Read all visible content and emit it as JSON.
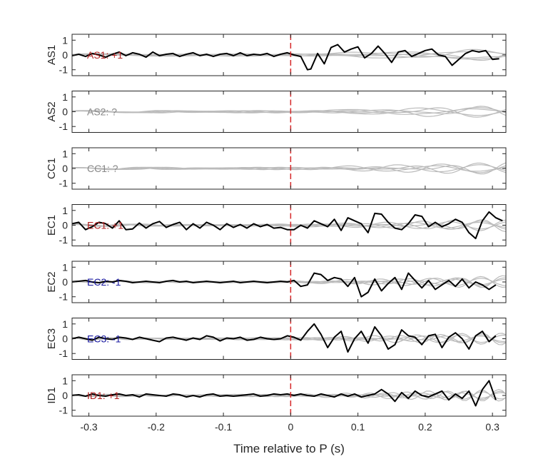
{
  "chart_data": {
    "type": "line",
    "xlabel": "Time relative to P (s)",
    "xlim": [
      -0.325,
      0.32
    ],
    "x_ticks": [
      -0.3,
      -0.2,
      -0.1,
      0,
      0.1,
      0.2,
      0.3
    ],
    "x_tick_labels": [
      "-0.3",
      "-0.2",
      "-0.1",
      "0",
      "0.1",
      "0.2",
      "0.3"
    ],
    "ylim": [
      -1.4,
      1.4
    ],
    "y_ticks": [
      1,
      0,
      -1
    ],
    "y_tick_labels": [
      "1",
      "0",
      "-1"
    ],
    "p_arrival_marker": {
      "x": 0,
      "color": "#d62728",
      "style": "dashed"
    },
    "colors": {
      "main_trace": "#000000",
      "background_traces": "#bbbbbb",
      "positive_polarity": "#b22222",
      "negative_polarity": "#1a1aa0",
      "unknown_polarity": "#888888"
    },
    "panels": [
      {
        "ylabel": "AS1",
        "annotation": "AS1: +1",
        "polarity": "positive",
        "main_trace": {
          "x": [
            -0.325,
            -0.315,
            -0.305,
            -0.295,
            -0.285,
            -0.275,
            -0.265,
            -0.255,
            -0.245,
            -0.235,
            -0.225,
            -0.215,
            -0.205,
            -0.195,
            -0.185,
            -0.175,
            -0.165,
            -0.155,
            -0.145,
            -0.135,
            -0.125,
            -0.115,
            -0.105,
            -0.095,
            -0.085,
            -0.075,
            -0.065,
            -0.055,
            -0.045,
            -0.035,
            -0.025,
            -0.015,
            -0.005,
            0.005,
            0.015,
            0.025,
            0.03,
            0.04,
            0.05,
            0.06,
            0.07,
            0.08,
            0.09,
            0.1,
            0.11,
            0.12,
            0.13,
            0.14,
            0.15,
            0.16,
            0.17,
            0.18,
            0.19,
            0.2,
            0.21,
            0.22,
            0.23,
            0.24,
            0.25,
            0.26,
            0.27,
            0.28,
            0.29,
            0.3,
            0.31
          ],
          "y": [
            -0.05,
            0.05,
            -0.1,
            0.1,
            0.0,
            -0.15,
            0.05,
            0.2,
            -0.05,
            0.15,
            0.05,
            -0.15,
            0.2,
            -0.05,
            0.05,
            0.1,
            -0.1,
            0.05,
            0.15,
            -0.05,
            0.05,
            -0.1,
            0.05,
            0.1,
            -0.05,
            0.15,
            -0.05,
            0.05,
            0.0,
            0.1,
            -0.1,
            0.05,
            0.15,
            0.0,
            -0.1,
            -1.0,
            -0.95,
            0.1,
            -0.6,
            0.5,
            0.7,
            0.2,
            0.4,
            0.55,
            -0.2,
            0.1,
            0.6,
            0.1,
            -0.5,
            0.2,
            0.3,
            -0.1,
            0.1,
            0.3,
            0.4,
            0.0,
            -0.1,
            -0.7,
            -0.3,
            0.1,
            0.3,
            0.2,
            0.3,
            -0.3,
            -0.25
          ]
        },
        "background_traces": 5
      },
      {
        "ylabel": "AS2",
        "annotation": "AS2: ?",
        "polarity": "unknown",
        "main_trace": null,
        "background_traces": 5
      },
      {
        "ylabel": "CC1",
        "annotation": "CC1: ?",
        "polarity": "unknown",
        "main_trace": null,
        "background_traces": 5
      },
      {
        "ylabel": "EC1",
        "annotation": "EC1: +1",
        "polarity": "positive",
        "main_trace": {
          "x": [
            -0.325,
            -0.315,
            -0.305,
            -0.295,
            -0.285,
            -0.275,
            -0.265,
            -0.255,
            -0.245,
            -0.235,
            -0.225,
            -0.215,
            -0.205,
            -0.195,
            -0.185,
            -0.175,
            -0.165,
            -0.155,
            -0.145,
            -0.135,
            -0.125,
            -0.115,
            -0.105,
            -0.095,
            -0.085,
            -0.075,
            -0.065,
            -0.055,
            -0.045,
            -0.035,
            -0.025,
            -0.015,
            -0.005,
            0.005,
            0.015,
            0.025,
            0.035,
            0.045,
            0.055,
            0.065,
            0.075,
            0.085,
            0.095,
            0.105,
            0.115,
            0.125,
            0.135,
            0.145,
            0.155,
            0.165,
            0.175,
            0.185,
            0.195,
            0.205,
            0.215,
            0.225,
            0.235,
            0.245,
            0.255,
            0.265,
            0.275,
            0.285,
            0.295,
            0.305,
            0.315
          ],
          "y": [
            0.1,
            0.2,
            -0.3,
            -0.1,
            0.2,
            0.1,
            -0.2,
            0.3,
            -0.3,
            -0.25,
            0.15,
            -0.2,
            0.1,
            0.25,
            -0.15,
            0.05,
            0.2,
            -0.3,
            0.1,
            -0.2,
            0.2,
            0.0,
            -0.3,
            0.1,
            -0.15,
            0.05,
            -0.2,
            0.1,
            -0.1,
            0.05,
            -0.2,
            -0.15,
            -0.3,
            -0.3,
            0.0,
            -0.2,
            0.3,
            0.1,
            -0.1,
            0.4,
            -0.35,
            0.5,
            0.3,
            0.1,
            -0.5,
            0.8,
            0.75,
            0.2,
            -0.2,
            -0.3,
            0.1,
            0.7,
            0.6,
            -0.1,
            0.2,
            -0.1,
            0.1,
            0.4,
            0.2,
            -0.5,
            -0.9,
            0.3,
            0.9,
            0.5,
            0.3
          ]
        },
        "background_traces": 5
      },
      {
        "ylabel": "EC2",
        "annotation": "EC2: -1",
        "polarity": "negative",
        "main_trace": {
          "x": [
            -0.325,
            -0.315,
            -0.305,
            -0.295,
            -0.285,
            -0.275,
            -0.265,
            -0.255,
            -0.245,
            -0.235,
            -0.225,
            -0.215,
            -0.205,
            -0.195,
            -0.185,
            -0.175,
            -0.165,
            -0.155,
            -0.145,
            -0.135,
            -0.125,
            -0.115,
            -0.105,
            -0.095,
            -0.085,
            -0.075,
            -0.065,
            -0.055,
            -0.045,
            -0.035,
            -0.025,
            -0.015,
            -0.005,
            0.005,
            0.015,
            0.025,
            0.035,
            0.045,
            0.055,
            0.065,
            0.075,
            0.085,
            0.095,
            0.105,
            0.115,
            0.125,
            0.135,
            0.145,
            0.155,
            0.165,
            0.175,
            0.185,
            0.195,
            0.205,
            0.215,
            0.225,
            0.235,
            0.245,
            0.255,
            0.265,
            0.275,
            0.285,
            0.295,
            0.305
          ],
          "y": [
            0.0,
            0.05,
            0.1,
            0.0,
            -0.05,
            0.05,
            0.0,
            0.1,
            0.05,
            -0.05,
            0.0,
            0.05,
            0.0,
            -0.05,
            0.05,
            0.1,
            0.0,
            0.05,
            -0.05,
            0.0,
            0.05,
            0.0,
            -0.05,
            0.0,
            0.05,
            -0.05,
            0.0,
            0.05,
            0.0,
            -0.05,
            0.0,
            0.05,
            0.0,
            0.1,
            -0.3,
            -0.2,
            0.6,
            0.5,
            0.1,
            0.3,
            0.2,
            -0.3,
            0.3,
            -1.0,
            -0.7,
            0.2,
            -0.6,
            -0.1,
            0.3,
            -0.5,
            0.6,
            0.1,
            -0.4,
            0.1,
            -0.5,
            -0.2,
            0.1,
            -0.3,
            0.2,
            -0.4,
            0.0,
            -0.2,
            -0.5,
            -0.2
          ]
        },
        "background_traces": 5
      },
      {
        "ylabel": "EC3",
        "annotation": "EC3: -1",
        "polarity": "negative",
        "main_trace": {
          "x": [
            -0.325,
            -0.315,
            -0.305,
            -0.295,
            -0.285,
            -0.275,
            -0.265,
            -0.255,
            -0.245,
            -0.235,
            -0.225,
            -0.215,
            -0.205,
            -0.195,
            -0.185,
            -0.175,
            -0.165,
            -0.155,
            -0.145,
            -0.135,
            -0.125,
            -0.115,
            -0.105,
            -0.095,
            -0.085,
            -0.075,
            -0.065,
            -0.055,
            -0.045,
            -0.035,
            -0.025,
            -0.015,
            -0.005,
            0.005,
            0.015,
            0.025,
            0.035,
            0.045,
            0.055,
            0.065,
            0.075,
            0.085,
            0.095,
            0.105,
            0.115,
            0.125,
            0.135,
            0.145,
            0.155,
            0.165,
            0.175,
            0.185,
            0.195,
            0.205,
            0.215,
            0.225,
            0.235,
            0.245,
            0.255,
            0.265,
            0.275,
            0.285,
            0.295,
            0.305
          ],
          "y": [
            0.0,
            0.1,
            0.0,
            -0.1,
            0.1,
            0.0,
            -0.05,
            0.1,
            0.05,
            -0.05,
            0.1,
            0.0,
            -0.1,
            -0.2,
            0.05,
            0.1,
            0.0,
            -0.1,
            0.05,
            -0.05,
            0.2,
            0.1,
            -0.15,
            0.05,
            0.0,
            0.1,
            -0.1,
            -0.05,
            0.1,
            0.0,
            -0.05,
            0.0,
            0.2,
            0.1,
            -0.1,
            0.5,
            1.0,
            0.3,
            -0.6,
            0.1,
            0.5,
            -0.9,
            0.0,
            0.5,
            -0.3,
            0.8,
            0.2,
            -0.7,
            -0.4,
            0.6,
            0.2,
            0.1,
            -0.4,
            0.2,
            0.3,
            -0.6,
            0.1,
            0.4,
            0.0,
            -0.7,
            0.2,
            0.5,
            -0.2,
            0.2
          ]
        },
        "background_traces": 5
      },
      {
        "ylabel": "ID1",
        "annotation": "ID1: +1",
        "polarity": "positive",
        "main_trace": {
          "x": [
            -0.325,
            -0.315,
            -0.305,
            -0.295,
            -0.285,
            -0.275,
            -0.265,
            -0.255,
            -0.245,
            -0.235,
            -0.225,
            -0.215,
            -0.205,
            -0.195,
            -0.185,
            -0.175,
            -0.165,
            -0.155,
            -0.145,
            -0.135,
            -0.125,
            -0.115,
            -0.105,
            -0.095,
            -0.085,
            -0.075,
            -0.065,
            -0.055,
            -0.045,
            -0.035,
            -0.025,
            -0.015,
            -0.005,
            0.005,
            0.015,
            0.025,
            0.035,
            0.045,
            0.055,
            0.065,
            0.075,
            0.085,
            0.095,
            0.105,
            0.115,
            0.125,
            0.135,
            0.145,
            0.155,
            0.165,
            0.175,
            0.185,
            0.195,
            0.205,
            0.215,
            0.225,
            0.235,
            0.245,
            0.255,
            0.265,
            0.275,
            0.285,
            0.295,
            0.305
          ],
          "y": [
            0.0,
            0.05,
            -0.05,
            0.1,
            0.0,
            -0.05,
            0.05,
            0.1,
            0.0,
            0.05,
            -0.1,
            0.1,
            0.05,
            0.0,
            -0.05,
            0.1,
            0.05,
            -0.1,
            0.0,
            -0.1,
            0.05,
            0.1,
            -0.05,
            0.0,
            -0.05,
            0.0,
            0.05,
            0.1,
            -0.05,
            0.0,
            0.1,
            0.05,
            0.1,
            0.0,
            0.1,
            0.0,
            -0.05,
            0.1,
            0.0,
            -0.1,
            0.1,
            -0.05,
            0.1,
            -0.1,
            0.0,
            0.1,
            0.4,
            0.1,
            -0.4,
            0.2,
            -0.2,
            0.3,
            0.0,
            -0.1,
            0.1,
            0.3,
            -0.3,
            0.1,
            -0.2,
            0.3,
            -0.7,
            0.4,
            1.0,
            -0.3
          ]
        },
        "background_traces": 5
      }
    ]
  }
}
